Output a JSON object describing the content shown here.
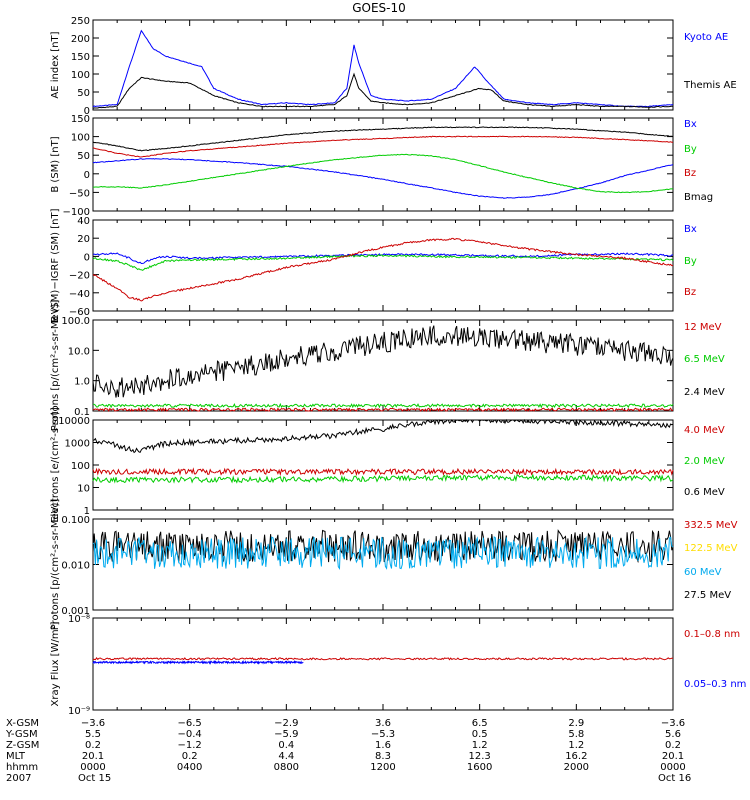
{
  "title": "GOES-10",
  "chart_data": [
    {
      "type": "line",
      "ylabel": "AE index [nT]",
      "ylim": [
        0,
        250
      ],
      "yticks": [
        "250",
        "200",
        "150",
        "100",
        "50",
        "0"
      ],
      "tick_values": [
        250,
        200,
        150,
        100,
        50,
        0
      ],
      "legend": [
        {
          "name": "Kyoto AE",
          "color": "#0000ff"
        },
        {
          "name": "Themis AE",
          "color": "#000000"
        }
      ],
      "series": [
        {
          "name": "Kyoto AE",
          "color": "#0000ff",
          "x": [
            0,
            1,
            1.5,
            2,
            2.5,
            3,
            3.5,
            4,
            4.5,
            5,
            6,
            7,
            8,
            9,
            10,
            10.5,
            10.8,
            11,
            11.5,
            12,
            13,
            14,
            15,
            15.8,
            16.3,
            17,
            17.5,
            18,
            19,
            20,
            21,
            22,
            23,
            24
          ],
          "values": [
            10,
            15,
            120,
            220,
            170,
            150,
            140,
            130,
            120,
            60,
            30,
            15,
            20,
            15,
            20,
            60,
            180,
            130,
            40,
            30,
            25,
            30,
            60,
            120,
            80,
            30,
            25,
            20,
            15,
            20,
            15,
            10,
            10,
            15
          ]
        },
        {
          "name": "Themis AE",
          "color": "#000000",
          "x": [
            0,
            1,
            1.5,
            2,
            3,
            4,
            5,
            6,
            7,
            8,
            9,
            10,
            10.5,
            10.8,
            11,
            11.5,
            12,
            13,
            14,
            15,
            16,
            16.5,
            17,
            18,
            19,
            20,
            21,
            22,
            23,
            24
          ],
          "values": [
            5,
            10,
            60,
            90,
            80,
            75,
            40,
            20,
            10,
            10,
            10,
            15,
            40,
            100,
            60,
            25,
            20,
            15,
            20,
            40,
            60,
            55,
            25,
            15,
            10,
            15,
            10,
            10,
            8,
            10
          ]
        }
      ]
    },
    {
      "type": "line",
      "ylabel": "B (SM) [nT]",
      "ylim": [
        -100,
        150
      ],
      "yticks": [
        "150",
        "100",
        "50",
        "0",
        "−50",
        "−100"
      ],
      "tick_values": [
        150,
        100,
        50,
        0,
        -50,
        -100
      ],
      "legend": [
        {
          "name": "Bx",
          "color": "#0000ff"
        },
        {
          "name": "By",
          "color": "#00cc00"
        },
        {
          "name": "Bz",
          "color": "#cc0000"
        },
        {
          "name": "Bmag",
          "color": "#000000"
        }
      ],
      "series": [
        {
          "name": "Bx",
          "color": "#0000ff",
          "x": [
            0,
            1,
            2,
            3,
            4,
            6,
            8,
            10,
            12,
            14,
            15,
            16,
            17,
            18,
            19,
            20,
            21,
            22,
            23,
            24
          ],
          "values": [
            30,
            35,
            40,
            40,
            38,
            30,
            20,
            5,
            -15,
            -38,
            -50,
            -60,
            -65,
            -63,
            -55,
            -40,
            -25,
            -5,
            10,
            25
          ]
        },
        {
          "name": "By",
          "color": "#00cc00",
          "x": [
            0,
            1,
            2,
            3,
            4,
            6,
            8,
            10,
            12,
            13,
            14,
            15,
            16,
            17,
            18,
            19,
            20,
            21,
            22,
            23,
            24
          ],
          "values": [
            -35,
            -35,
            -38,
            -30,
            -20,
            0,
            20,
            38,
            50,
            52,
            48,
            38,
            22,
            5,
            -10,
            -25,
            -38,
            -48,
            -50,
            -48,
            -40
          ]
        },
        {
          "name": "Bz",
          "color": "#cc0000",
          "x": [
            0,
            1,
            2,
            3,
            4,
            6,
            8,
            10,
            12,
            14,
            16,
            18,
            20,
            22,
            24
          ],
          "values": [
            70,
            55,
            45,
            55,
            62,
            72,
            82,
            90,
            95,
            100,
            100,
            100,
            98,
            92,
            85
          ]
        },
        {
          "name": "Bmag",
          "color": "#000000",
          "x": [
            0,
            1,
            2,
            3,
            4,
            6,
            8,
            10,
            12,
            14,
            16,
            18,
            20,
            22,
            24
          ],
          "values": [
            85,
            75,
            62,
            68,
            75,
            90,
            105,
            115,
            120,
            125,
            125,
            125,
            120,
            112,
            100
          ]
        }
      ]
    },
    {
      "type": "line",
      "ylabel": "B (SM)−IGRF (SM) [nT]",
      "ylim": [
        -60,
        40
      ],
      "yticks": [
        "40",
        "20",
        "0",
        "−20",
        "−40",
        "−60"
      ],
      "tick_values": [
        40,
        20,
        0,
        -20,
        -40,
        -60
      ],
      "legend": [
        {
          "name": "Bx",
          "color": "#0000ff"
        },
        {
          "name": "By",
          "color": "#00cc00"
        },
        {
          "name": "Bz",
          "color": "#cc0000"
        }
      ],
      "series": [
        {
          "name": "Bx",
          "color": "#0000ff",
          "x": [
            0,
            1,
            1.5,
            2,
            2.5,
            3,
            4,
            6,
            8,
            10,
            12,
            14,
            16,
            18,
            20,
            22,
            24
          ],
          "values": [
            2,
            3,
            -2,
            -8,
            -2,
            0,
            -2,
            -1,
            0,
            1,
            2,
            2,
            1,
            0,
            2,
            3,
            1
          ]
        },
        {
          "name": "By",
          "color": "#00cc00",
          "x": [
            0,
            1,
            1.5,
            2,
            2.5,
            3,
            4,
            6,
            8,
            10,
            12,
            14,
            16,
            18,
            20,
            22,
            24
          ],
          "values": [
            -2,
            -5,
            -10,
            -15,
            -10,
            -5,
            -4,
            -3,
            -2,
            0,
            1,
            0,
            -1,
            -1,
            -2,
            -3,
            -4
          ]
        },
        {
          "name": "Bz",
          "color": "#cc0000",
          "x": [
            0,
            1,
            1.5,
            2,
            3,
            4,
            6,
            8,
            10,
            11,
            12,
            13,
            14,
            15,
            16,
            18,
            20,
            22,
            23,
            24
          ],
          "values": [
            -20,
            -35,
            -45,
            -48,
            -40,
            -35,
            -25,
            -12,
            -3,
            4,
            10,
            15,
            18,
            19,
            16,
            8,
            2,
            -2,
            -6,
            -10
          ]
        }
      ]
    },
    {
      "type": "line",
      "scale": "log",
      "ylabel": "Protons [p/(cm²-s-sr-MeV)]",
      "ylim": [
        0.1,
        100
      ],
      "yticks": [
        "100.0",
        "10.0",
        "1.0",
        "0.1"
      ],
      "tick_values": [
        100,
        10,
        1,
        0.1
      ],
      "legend": [
        {
          "name": "12 MeV",
          "color": "#cc0000"
        },
        {
          "name": "6.5 MeV",
          "color": "#00cc00"
        },
        {
          "name": "2.4 MeV",
          "color": "#000000"
        }
      ],
      "series": [
        {
          "name": "2.4 MeV",
          "color": "#000000",
          "x": [
            0,
            1,
            2,
            3,
            4,
            6,
            8,
            10,
            12,
            13,
            14,
            15,
            16,
            18,
            20,
            22,
            24
          ],
          "values": [
            0.8,
            0.6,
            0.7,
            1.0,
            1.5,
            2.5,
            5,
            9,
            18,
            25,
            35,
            30,
            28,
            20,
            15,
            10,
            6
          ]
        },
        {
          "name": "6.5 MeV",
          "color": "#00cc00",
          "x": [
            0,
            4,
            8,
            12,
            16,
            20,
            24
          ],
          "values": [
            0.15,
            0.15,
            0.15,
            0.15,
            0.15,
            0.15,
            0.15
          ]
        },
        {
          "name": "12 MeV",
          "color": "#cc0000",
          "x": [
            0,
            6,
            12,
            18,
            24
          ],
          "values": [
            0.11,
            0.11,
            0.11,
            0.11,
            0.11
          ]
        }
      ]
    },
    {
      "type": "line",
      "scale": "log",
      "ylabel": "Electrons [e/(cm²-s-sr)]",
      "ylim": [
        1,
        10000
      ],
      "yticks": [
        "10000",
        "1000",
        "100",
        "10",
        "1"
      ],
      "tick_values": [
        10000,
        1000,
        100,
        10,
        1
      ],
      "legend": [
        {
          "name": "4.0 MeV",
          "color": "#cc0000"
        },
        {
          "name": "2.0 MeV",
          "color": "#00cc00"
        },
        {
          "name": "0.6 MeV",
          "color": "#000000"
        }
      ],
      "series": [
        {
          "name": "0.6 MeV",
          "color": "#000000",
          "x": [
            0,
            1,
            1.5,
            2,
            3,
            4,
            6,
            8,
            10,
            12,
            14,
            15,
            16,
            18,
            20,
            22,
            24
          ],
          "values": [
            1300,
            700,
            500,
            400,
            900,
            1000,
            1200,
            1500,
            2000,
            4000,
            8000,
            10000,
            10000,
            9000,
            8000,
            7000,
            5000
          ]
        },
        {
          "name": "4.0 MeV",
          "color": "#cc0000",
          "x": [
            0,
            6,
            12,
            18,
            24
          ],
          "values": [
            50,
            50,
            50,
            50,
            50
          ]
        },
        {
          "name": "2.0 MeV",
          "color": "#00cc00",
          "x": [
            0,
            6,
            12,
            18,
            24
          ],
          "values": [
            22,
            22,
            25,
            28,
            25
          ]
        }
      ]
    },
    {
      "type": "line",
      "scale": "log",
      "ylabel": "Protons [p/(cm²-s-sr-MeV)]",
      "ylim": [
        0.001,
        0.1
      ],
      "yticks": [
        "0.100",
        "0.010",
        "0.001"
      ],
      "tick_values": [
        0.1,
        0.01,
        0.001
      ],
      "legend": [
        {
          "name": "332.5 MeV",
          "color": "#cc0000"
        },
        {
          "name": "122.5 MeV",
          "color": "#ffdd00"
        },
        {
          "name": "60 MeV",
          "color": "#00aaee"
        },
        {
          "name": "27.5 MeV",
          "color": "#000000"
        }
      ],
      "series": [
        {
          "name": "27.5 MeV",
          "color": "#000000",
          "x": [
            0,
            6,
            12,
            18,
            24
          ],
          "values": [
            0.025,
            0.025,
            0.025,
            0.025,
            0.025
          ]
        },
        {
          "name": "60 MeV",
          "color": "#00aaee",
          "x": [
            0,
            6,
            12,
            18,
            24
          ],
          "values": [
            0.018,
            0.018,
            0.018,
            0.018,
            0.018
          ]
        }
      ]
    },
    {
      "type": "line",
      "scale": "log",
      "ylabel": "Xray Flux [W/m²]",
      "ylim": [
        1e-09,
        1e-08
      ],
      "yticks": [
        "10⁻⁸",
        "10⁻⁹"
      ],
      "tick_values": [
        1e-08,
        1e-09
      ],
      "legend": [
        {
          "name": "0.1–0.8 nm",
          "color": "#cc0000"
        },
        {
          "name": "0.05–0.3 nm",
          "color": "#0000ff"
        }
      ],
      "series": [
        {
          "name": "0.1–0.8 nm",
          "color": "#cc0000",
          "x": [
            0,
            24
          ],
          "values": [
            3.6e-09,
            3.6e-09
          ]
        },
        {
          "name": "0.05–0.3 nm",
          "color": "#0000ff",
          "x": [
            0,
            8.7
          ],
          "values": [
            3.3e-09,
            3.3e-09
          ]
        }
      ]
    }
  ],
  "footer": {
    "rows": [
      {
        "label": "X-GSM",
        "values": [
          "−3.6",
          "−6.5",
          "−2.9",
          "3.6",
          "6.5",
          "2.9",
          "−3.6"
        ]
      },
      {
        "label": "Y-GSM",
        "values": [
          "5.5",
          "−0.4",
          "−5.9",
          "−5.3",
          "0.5",
          "5.8",
          "5.6"
        ]
      },
      {
        "label": "Z-GSM",
        "values": [
          "0.2",
          "−1.2",
          "0.4",
          "1.6",
          "1.2",
          "1.2",
          "0.2"
        ]
      },
      {
        "label": "MLT",
        "values": [
          "20.1",
          "0.2",
          "4.4",
          "8.3",
          "12.3",
          "16.2",
          "20.1"
        ]
      },
      {
        "label": "hhmm",
        "values": [
          "0000",
          "0400",
          "0800",
          "1200",
          "1600",
          "2000",
          "0000"
        ]
      },
      {
        "label": "2007",
        "values": [
          "Oct 15",
          "",
          "",
          "",
          "",
          "",
          "Oct 16"
        ]
      }
    ]
  }
}
